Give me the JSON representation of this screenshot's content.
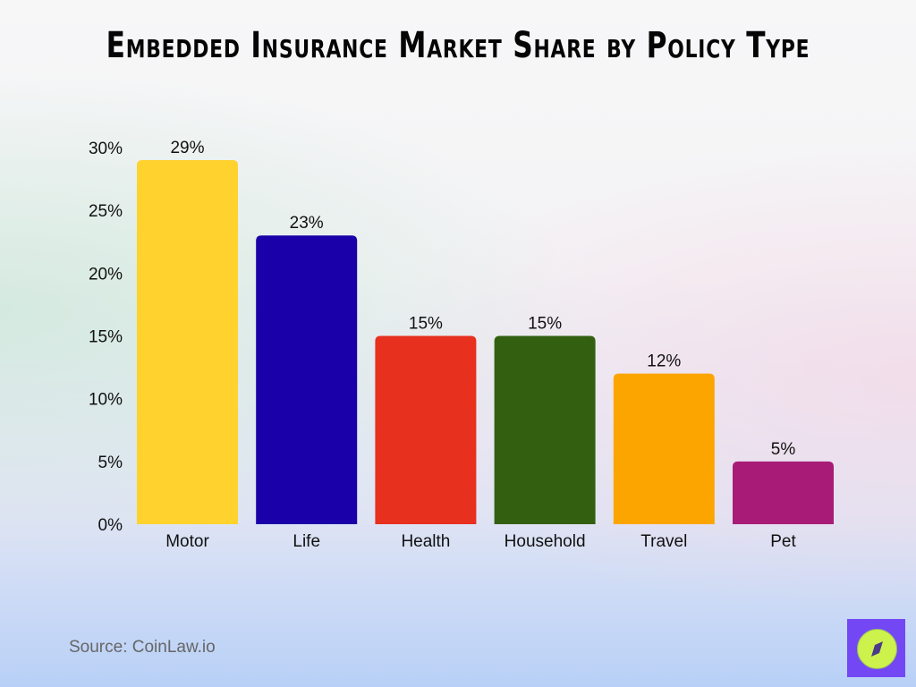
{
  "chart_data": {
    "type": "bar",
    "title": "Embedded Insurance Market Share by Policy Type",
    "categories": [
      "Motor",
      "Life",
      "Health",
      "Household",
      "Travel",
      "Pet"
    ],
    "values": [
      29,
      23,
      15,
      15,
      12,
      5
    ],
    "data_labels": [
      "29%",
      "23%",
      "15%",
      "15%",
      "12%",
      "5%"
    ],
    "colors": [
      "#ffd22e",
      "#1a00a8",
      "#e8301f",
      "#336010",
      "#fca500",
      "#a81c78"
    ],
    "yticks": [
      "0%",
      "5%",
      "10%",
      "15%",
      "20%",
      "25%",
      "30%"
    ],
    "ylim": [
      0,
      30
    ],
    "grid": false,
    "xlabel": "",
    "ylabel": ""
  },
  "source": "Source: CoinLaw.io",
  "logo": {
    "icon": "compass-icon",
    "color": "#7447f5"
  }
}
